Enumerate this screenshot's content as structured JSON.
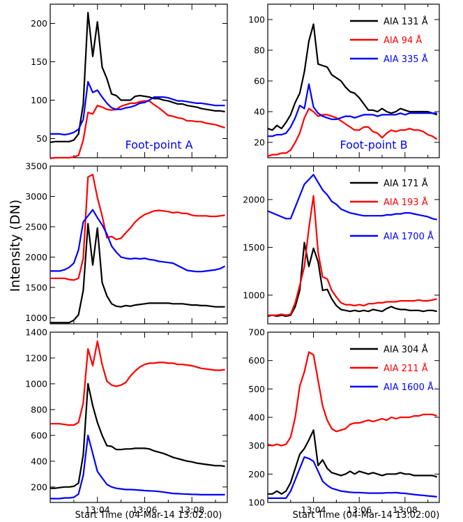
{
  "figure": {
    "ylabel": "Intensity (DN)",
    "xlabel": "Start Time (04-Mar-14 13:02:00)",
    "xticks": [
      "13:04",
      "13:06",
      "13:08"
    ],
    "colors": {
      "black": "#000000",
      "red": "#ff0000",
      "blue": "#0000ff"
    }
  },
  "chart_data": [
    {
      "type": "line",
      "panel": "top-left",
      "ylim": [
        25,
        225
      ],
      "yticks": [
        50,
        100,
        150,
        200
      ],
      "annotation": "Foot-point A",
      "x": [
        0,
        0.2,
        0.4,
        0.6,
        0.8,
        1.0,
        1.2,
        1.4,
        1.6,
        1.8,
        2.0,
        2.2,
        2.4,
        2.6,
        2.8,
        3.0,
        3.2,
        3.4,
        3.6,
        3.8,
        4.0,
        4.2,
        4.4,
        4.6,
        4.8,
        5.0,
        5.2,
        5.4,
        5.6,
        5.8,
        6.0,
        6.2,
        6.4,
        6.6,
        6.8,
        7.0,
        7.2,
        7.4
      ],
      "series": [
        {
          "name": "AIA 131 Å",
          "color": "#000000",
          "values": [
            45,
            46,
            46,
            46,
            46,
            48,
            56,
            95,
            214,
            157,
            202,
            143,
            128,
            108,
            106,
            100,
            100,
            100,
            105,
            106,
            105,
            104,
            102,
            102,
            100,
            99,
            97,
            95,
            95,
            93,
            92,
            91,
            89,
            88,
            87,
            86,
            86,
            85
          ]
        },
        {
          "name": "AIA 94 Å",
          "color": "#ff0000",
          "values": [
            24,
            25,
            25,
            25,
            25,
            26,
            28,
            48,
            84,
            82,
            93,
            91,
            88,
            87,
            88,
            92,
            94,
            96,
            96,
            98,
            99,
            99,
            94,
            90,
            85,
            80,
            79,
            77,
            76,
            73,
            73,
            72,
            72,
            70,
            69,
            68,
            66,
            64
          ]
        },
        {
          "name": "AIA 335 Å",
          "color": "#0000ff",
          "values": [
            56,
            56,
            56,
            55,
            56,
            58,
            62,
            75,
            124,
            110,
            113,
            104,
            96,
            90,
            88,
            88,
            90,
            91,
            93,
            96,
            97,
            100,
            104,
            104,
            104,
            103,
            101,
            99,
            99,
            98,
            97,
            96,
            96,
            95,
            94,
            93,
            93,
            93
          ]
        }
      ]
    },
    {
      "type": "line",
      "panel": "top-right",
      "ylim": [
        10,
        110
      ],
      "yticks": [
        20,
        40,
        60,
        80,
        100
      ],
      "annotation": "Foot-point B",
      "x": [
        0,
        0.2,
        0.4,
        0.6,
        0.8,
        1.0,
        1.2,
        1.4,
        1.6,
        1.8,
        2.0,
        2.2,
        2.4,
        2.6,
        2.8,
        3.0,
        3.2,
        3.4,
        3.6,
        3.8,
        4.0,
        4.2,
        4.4,
        4.6,
        4.8,
        5.0,
        5.2,
        5.4,
        5.6,
        5.8,
        6.0,
        6.2,
        6.4,
        6.6,
        6.8,
        7.0,
        7.2,
        7.4
      ],
      "series": [
        {
          "name": "AIA 131 Å",
          "color": "#000000",
          "values": [
            29,
            28,
            31,
            29,
            33,
            38,
            46,
            52,
            66,
            86,
            97,
            71,
            70,
            69,
            64,
            62,
            60,
            56,
            53,
            52,
            49,
            45,
            41,
            41,
            40,
            42,
            40,
            39,
            40,
            42,
            41,
            40,
            40,
            40,
            40,
            40,
            39,
            38
          ]
        },
        {
          "name": "AIA 94 Å",
          "color": "#ff0000",
          "values": [
            11,
            12,
            12,
            13,
            13,
            15,
            20,
            26,
            36,
            42,
            40,
            37,
            38,
            38,
            37,
            36,
            34,
            32,
            30,
            28,
            28,
            30,
            30,
            27,
            26,
            23,
            26,
            28,
            27,
            28,
            28,
            29,
            28,
            28,
            27,
            25,
            24,
            22
          ]
        },
        {
          "name": "AIA 335 Å",
          "color": "#0000ff",
          "values": [
            24,
            24,
            25,
            25,
            26,
            30,
            36,
            44,
            42,
            58,
            43,
            39,
            37,
            36,
            35,
            35,
            36,
            37,
            37,
            36,
            37,
            38,
            38,
            38,
            37,
            38,
            38,
            38,
            38,
            39,
            38,
            39,
            39,
            39,
            39,
            39,
            39,
            39
          ]
        }
      ]
    },
    {
      "type": "line",
      "panel": "middle-left",
      "ylim": [
        900,
        3500
      ],
      "yticks": [
        1000,
        1500,
        2000,
        2500,
        3000,
        3500
      ],
      "x": [
        0,
        0.2,
        0.4,
        0.6,
        0.8,
        1.0,
        1.2,
        1.4,
        1.6,
        1.8,
        2.0,
        2.2,
        2.4,
        2.6,
        2.8,
        3.0,
        3.2,
        3.4,
        3.6,
        3.8,
        4.0,
        4.2,
        4.4,
        4.6,
        4.8,
        5.0,
        5.2,
        5.4,
        5.6,
        5.8,
        6.0,
        6.2,
        6.4,
        6.6,
        6.8,
        7.0,
        7.2,
        7.4
      ],
      "series": [
        {
          "name": "AIA 171 Å",
          "color": "#000000",
          "values": [
            920,
            920,
            920,
            920,
            920,
            960,
            1050,
            1450,
            2550,
            1870,
            2480,
            1580,
            1360,
            1230,
            1190,
            1180,
            1200,
            1190,
            1210,
            1220,
            1230,
            1240,
            1240,
            1240,
            1240,
            1240,
            1230,
            1230,
            1230,
            1220,
            1210,
            1210,
            1200,
            1200,
            1190,
            1180,
            1180,
            1180
          ]
        },
        {
          "name": "AIA 193 Å",
          "color": "#ff0000",
          "values": [
            1650,
            1650,
            1650,
            1650,
            1630,
            1620,
            1650,
            1980,
            3320,
            3360,
            2980,
            2680,
            2320,
            2340,
            2290,
            2310,
            2400,
            2480,
            2580,
            2650,
            2700,
            2730,
            2760,
            2770,
            2760,
            2750,
            2730,
            2740,
            2720,
            2720,
            2690,
            2680,
            2680,
            2680,
            2670,
            2670,
            2680,
            2690
          ]
        },
        {
          "name": "AIA 1700 Å",
          "color": "#0000ff",
          "values": [
            1770,
            1770,
            1770,
            1790,
            1830,
            1900,
            2120,
            2580,
            2680,
            2780,
            2650,
            2530,
            2380,
            2180,
            2080,
            2000,
            1980,
            1970,
            1980,
            1970,
            1980,
            1960,
            1950,
            1930,
            1920,
            1910,
            1900,
            1860,
            1820,
            1780,
            1770,
            1760,
            1760,
            1770,
            1780,
            1790,
            1810,
            1850
          ]
        }
      ]
    },
    {
      "type": "line",
      "panel": "middle-right",
      "ylim": [
        700,
        2350
      ],
      "yticks": [
        1000,
        1500,
        2000
      ],
      "x": [
        0,
        0.2,
        0.4,
        0.6,
        0.8,
        1.0,
        1.2,
        1.4,
        1.6,
        1.8,
        2.0,
        2.2,
        2.4,
        2.6,
        2.8,
        3.0,
        3.2,
        3.4,
        3.6,
        3.8,
        4.0,
        4.2,
        4.4,
        4.6,
        4.8,
        5.0,
        5.2,
        5.4,
        5.6,
        5.8,
        6.0,
        6.2,
        6.4,
        6.6,
        6.8,
        7.0,
        7.2,
        7.4
      ],
      "series": [
        {
          "name": "AIA 171 Å",
          "color": "#000000",
          "values": [
            780,
            790,
            780,
            790,
            780,
            790,
            880,
            1050,
            1550,
            1300,
            1490,
            1350,
            1050,
            1060,
            960,
            890,
            850,
            840,
            830,
            840,
            830,
            840,
            830,
            850,
            840,
            830,
            860,
            880,
            860,
            850,
            850,
            840,
            840,
            840,
            830,
            840,
            840,
            830
          ]
        },
        {
          "name": "AIA 193 Å",
          "color": "#ff0000",
          "values": [
            790,
            790,
            790,
            800,
            790,
            800,
            920,
            1100,
            1300,
            1700,
            2040,
            1450,
            1190,
            1170,
            1050,
            980,
            920,
            900,
            900,
            890,
            900,
            890,
            910,
            910,
            920,
            920,
            930,
            930,
            930,
            940,
            940,
            940,
            940,
            950,
            940,
            940,
            950,
            960
          ]
        },
        {
          "name": "AIA 1700 Å",
          "color": "#0000ff",
          "values": [
            1880,
            1860,
            1840,
            1820,
            1800,
            1800,
            1920,
            2040,
            2160,
            2210,
            2260,
            2180,
            2100,
            2050,
            1980,
            1950,
            1900,
            1880,
            1860,
            1850,
            1840,
            1830,
            1830,
            1830,
            1830,
            1830,
            1840,
            1840,
            1850,
            1850,
            1860,
            1860,
            1850,
            1840,
            1830,
            1820,
            1800,
            1790
          ]
        }
      ]
    },
    {
      "type": "line",
      "panel": "bottom-left",
      "ylim": [
        80,
        1400
      ],
      "yticks": [
        200,
        400,
        600,
        800,
        1000,
        1200,
        1400
      ],
      "x": [
        0,
        0.2,
        0.4,
        0.6,
        0.8,
        1.0,
        1.2,
        1.4,
        1.6,
        1.8,
        2.0,
        2.2,
        2.4,
        2.6,
        2.8,
        3.0,
        3.2,
        3.4,
        3.6,
        3.8,
        4.0,
        4.2,
        4.4,
        4.6,
        4.8,
        5.0,
        5.2,
        5.4,
        5.6,
        5.8,
        6.0,
        6.2,
        6.4,
        6.6,
        6.8,
        7.0,
        7.2,
        7.4
      ],
      "series": [
        {
          "name": "AIA 304 Å",
          "color": "#000000",
          "values": [
            190,
            190,
            195,
            200,
            200,
            205,
            230,
            450,
            1000,
            830,
            700,
            600,
            520,
            515,
            490,
            490,
            495,
            495,
            500,
            500,
            500,
            495,
            480,
            470,
            460,
            445,
            430,
            420,
            410,
            400,
            395,
            385,
            380,
            375,
            370,
            365,
            365,
            360
          ]
        },
        {
          "name": "AIA 211 Å",
          "color": "#ff0000",
          "values": [
            690,
            690,
            690,
            685,
            680,
            680,
            700,
            850,
            1270,
            1140,
            1330,
            1150,
            1020,
            990,
            980,
            990,
            1010,
            1060,
            1100,
            1130,
            1150,
            1160,
            1160,
            1165,
            1165,
            1160,
            1160,
            1150,
            1150,
            1145,
            1140,
            1130,
            1120,
            1115,
            1110,
            1105,
            1105,
            1110
          ]
        },
        {
          "name": "AIA 1600 Å",
          "color": "#0000ff",
          "values": [
            110,
            110,
            110,
            115,
            115,
            120,
            145,
            290,
            600,
            460,
            320,
            270,
            220,
            200,
            190,
            185,
            180,
            180,
            178,
            175,
            172,
            170,
            168,
            165,
            160,
            155,
            150,
            148,
            146,
            145,
            143,
            142,
            140,
            140,
            140,
            140,
            140,
            140
          ]
        }
      ]
    },
    {
      "type": "line",
      "panel": "bottom-right",
      "ylim": [
        100,
        700
      ],
      "yticks": [
        100,
        200,
        300,
        400,
        500,
        600,
        700
      ],
      "x": [
        0,
        0.2,
        0.4,
        0.6,
        0.8,
        1.0,
        1.2,
        1.4,
        1.6,
        1.8,
        2.0,
        2.2,
        2.4,
        2.6,
        2.8,
        3.0,
        3.2,
        3.4,
        3.6,
        3.8,
        4.0,
        4.2,
        4.4,
        4.6,
        4.8,
        5.0,
        5.2,
        5.4,
        5.6,
        5.8,
        6.0,
        6.2,
        6.4,
        6.6,
        6.8,
        7.0,
        7.2,
        7.4
      ],
      "series": [
        {
          "name": "AIA 304 Å",
          "color": "#000000",
          "values": [
            130,
            130,
            140,
            130,
            140,
            170,
            220,
            270,
            290,
            320,
            355,
            230,
            250,
            220,
            205,
            200,
            195,
            200,
            210,
            200,
            210,
            205,
            200,
            205,
            200,
            195,
            200,
            200,
            200,
            205,
            200,
            200,
            195,
            195,
            195,
            195,
            195,
            190
          ]
        },
        {
          "name": "AIA 211 Å",
          "color": "#ff0000",
          "values": [
            305,
            300,
            305,
            300,
            305,
            330,
            400,
            510,
            560,
            630,
            620,
            530,
            440,
            390,
            360,
            350,
            355,
            360,
            375,
            380,
            380,
            385,
            390,
            385,
            390,
            395,
            390,
            400,
            395,
            400,
            400,
            400,
            405,
            405,
            410,
            410,
            410,
            405
          ]
        },
        {
          "name": "AIA 1600 Å",
          "color": "#0000ff",
          "values": [
            115,
            115,
            115,
            115,
            115,
            140,
            180,
            220,
            260,
            255,
            245,
            210,
            175,
            160,
            150,
            145,
            140,
            138,
            136,
            135,
            135,
            134,
            133,
            133,
            133,
            133,
            134,
            134,
            135,
            133,
            132,
            130,
            128,
            126,
            125,
            123,
            122,
            120
          ]
        }
      ]
    }
  ]
}
